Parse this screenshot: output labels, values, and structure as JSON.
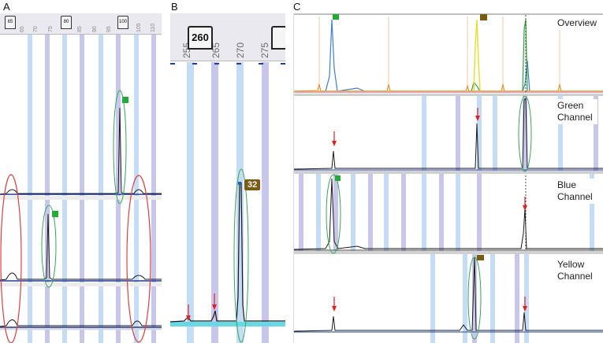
{
  "panels": {
    "a": {
      "letter": "A",
      "ruler_ticks": [
        "65",
        "70",
        "75",
        "85",
        "90",
        "95",
        "105",
        "110"
      ],
      "flags": [
        "65",
        "80",
        "100"
      ]
    },
    "b": {
      "letter": "B",
      "ruler_ticks": [
        "255",
        "265",
        "270",
        "275"
      ],
      "flags": [
        "260"
      ],
      "peak_label": "32"
    },
    "c": {
      "letter": "C",
      "channels": [
        "Overview",
        "Green Channel",
        "Blue Channel",
        "Yellow Channel"
      ]
    }
  },
  "colors": {
    "bin_light": "#c5dcf7",
    "bin_dark": "#c9c6ee",
    "trace": "#1a1a1a",
    "highlight_green": "#33aa55",
    "highlight_red": "#e04040",
    "arrow_red": "#e02020",
    "baseline_blue": "#1f3fa0",
    "baseline_cyan": "#66d8e6",
    "peak_tag_brown": "#7b5a12",
    "green_marker": "#22aa33"
  },
  "icons": [
    "bin-flag-icon",
    "green-peak-marker-icon",
    "red-arrow-icon",
    "highlight-ellipse-icon"
  ]
}
